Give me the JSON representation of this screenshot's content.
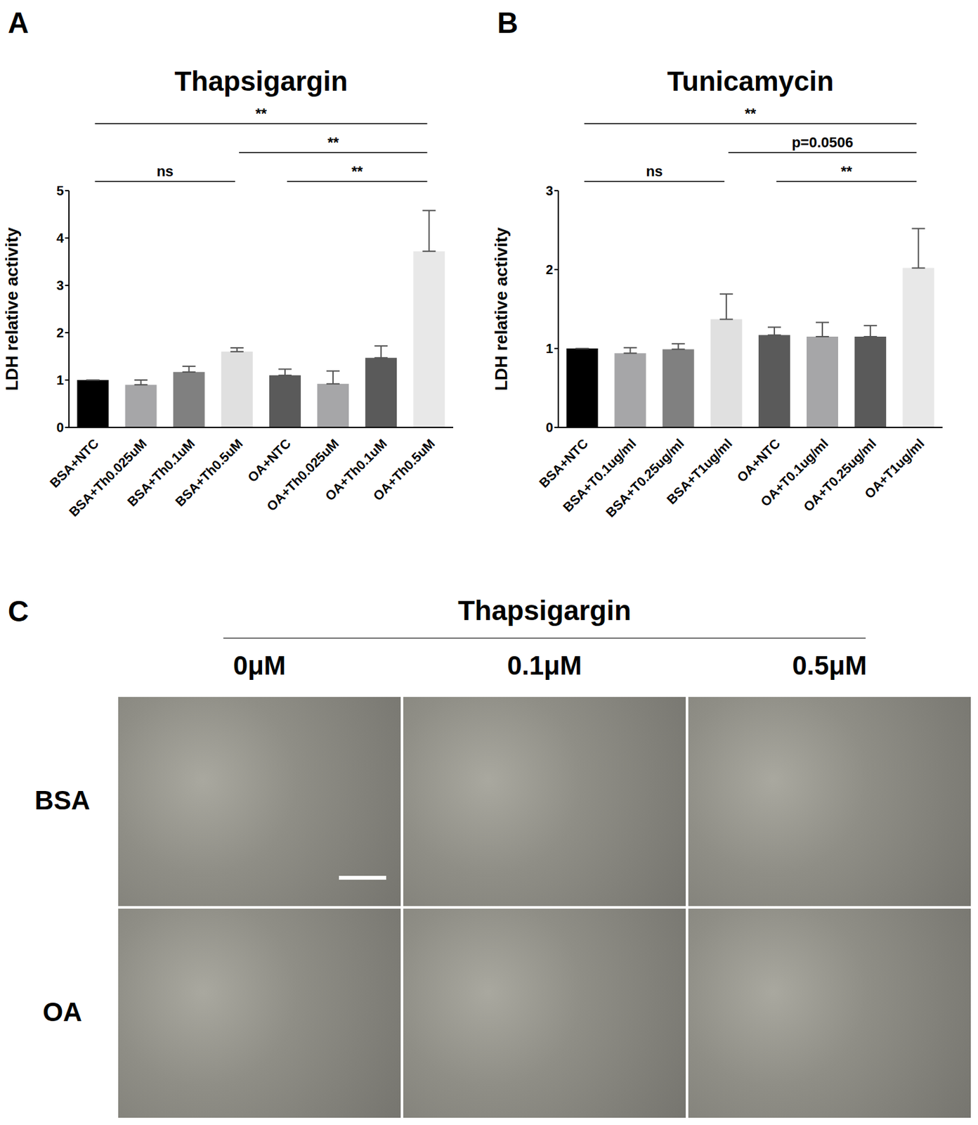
{
  "chart_data": [
    {
      "type": "bar",
      "panel": "A",
      "title": "Thapsigargin",
      "y_label": "LDH relative activity",
      "categories": [
        "BSA+NTC",
        "BSA+Th0.025uM",
        "BSA+Th0.1uM",
        "BSA+Th0.5uM",
        "OA+NTC",
        "OA+Th0.025uM",
        "OA+Th0.1uM",
        "OA+Th0.5uM"
      ],
      "values": [
        1.0,
        0.9,
        1.17,
        1.6,
        1.1,
        0.92,
        1.47,
        3.72
      ],
      "errors": [
        0,
        0.1,
        0.12,
        0.08,
        0.13,
        0.27,
        0.25,
        0.86
      ],
      "colors": [
        "#000000",
        "#a6a6a8",
        "#808080",
        "#e0e0e0",
        "#5a5a5a",
        "#a6a6a8",
        "#5a5a5a",
        "#e8e8e8"
      ],
      "ylim": [
        0,
        5
      ],
      "yticks": [
        0,
        1,
        2,
        3,
        4,
        5
      ],
      "annotations": [
        {
          "from": 0,
          "to": 3,
          "label": "ns"
        },
        {
          "from": 4,
          "to": 7,
          "label": "**"
        },
        {
          "from": 3,
          "to": 7,
          "label": "**"
        },
        {
          "from": 0,
          "to": 7,
          "label": "**"
        }
      ]
    },
    {
      "type": "bar",
      "panel": "B",
      "title": "Tunicamycin",
      "y_label": "LDH relative activity",
      "categories": [
        "BSA+NTC",
        "BSA+T0.1ug/ml",
        "BSA+T0.25ug/ml",
        "BSA+T1ug/ml",
        "OA+NTC",
        "OA+T0.1ug/ml",
        "OA+T0.25ug/ml",
        "OA+T1ug/ml"
      ],
      "values": [
        1.0,
        0.94,
        0.99,
        1.37,
        1.17,
        1.15,
        1.15,
        2.02
      ],
      "errors": [
        0,
        0.07,
        0.07,
        0.32,
        0.1,
        0.18,
        0.14,
        0.5
      ],
      "colors": [
        "#000000",
        "#a6a6a8",
        "#808080",
        "#e0e0e0",
        "#5a5a5a",
        "#a6a6a8",
        "#5a5a5a",
        "#e8e8e8"
      ],
      "ylim": [
        0,
        3
      ],
      "yticks": [
        0,
        1,
        2,
        3
      ],
      "annotations": [
        {
          "from": 0,
          "to": 3,
          "label": "ns"
        },
        {
          "from": 4,
          "to": 7,
          "label": "**"
        },
        {
          "from": 3,
          "to": 7,
          "label": "p=0.0506"
        },
        {
          "from": 0,
          "to": 7,
          "label": "**"
        }
      ]
    }
  ],
  "image_panel": {
    "panel": "C",
    "title": "Thapsigargin",
    "columns": [
      "0μM",
      "0.1μM",
      "0.5μM"
    ],
    "rows": [
      "BSA",
      "OA"
    ]
  }
}
